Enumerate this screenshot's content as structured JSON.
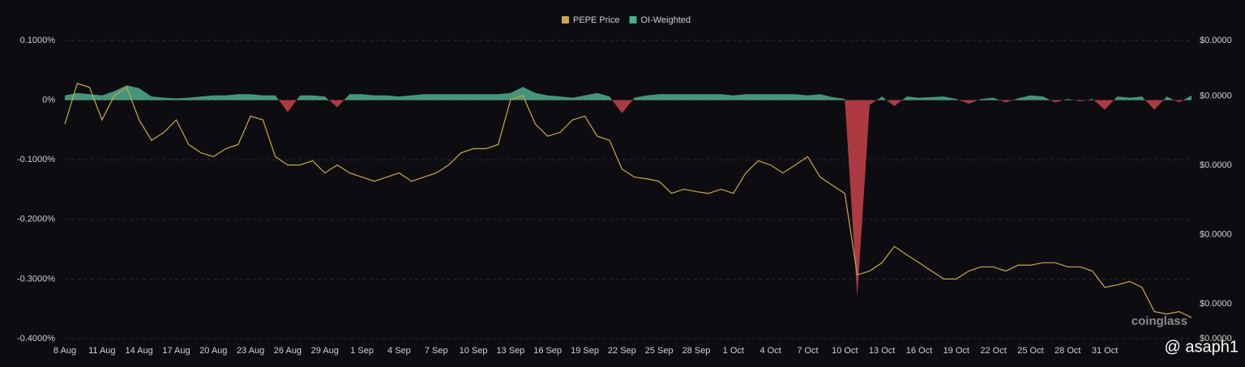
{
  "chart_data": {
    "type": "line",
    "categories": [
      "8 Aug",
      null,
      null,
      "11 Aug",
      null,
      null,
      "14 Aug",
      null,
      null,
      "17 Aug",
      null,
      null,
      "20 Aug",
      null,
      null,
      "23 Aug",
      null,
      null,
      "26 Aug",
      null,
      null,
      "29 Aug",
      null,
      null,
      "1 Sep",
      null,
      null,
      "4 Sep",
      null,
      null,
      "7 Sep",
      null,
      null,
      "10 Sep",
      null,
      null,
      "13 Sep",
      null,
      null,
      "16 Sep",
      null,
      null,
      "19 Sep",
      null,
      null,
      "22 Sep",
      null,
      null,
      "25 Sep",
      null,
      null,
      "28 Sep",
      null,
      null,
      "1 Oct",
      null,
      null,
      "4 Oct",
      null,
      null,
      "7 Oct",
      null,
      null,
      "10 Oct",
      null,
      null,
      "13 Oct",
      null,
      null,
      "16 Oct",
      null,
      null,
      "19 Oct",
      null,
      null,
      "22 Oct",
      null,
      null,
      "25 Oct",
      null,
      null,
      "28 Oct",
      null,
      null,
      "31 Oct",
      null,
      null,
      null,
      null,
      null,
      null,
      null
    ],
    "series": [
      {
        "name": "PEPE Price",
        "color": "#c9a84c",
        "axis": "y2",
        "values": [
          1.119e-05,
          1.236e-05,
          1.225e-05,
          1.131e-05,
          1.201e-05,
          1.225e-05,
          1.131e-05,
          1.072e-05,
          1.095e-05,
          1.131e-05,
          1.06e-05,
          1.036e-05,
          1.025e-05,
          1.048e-05,
          1.06e-05,
          1.142e-05,
          1.131e-05,
          1.025e-05,
          1.001e-05,
          1.001e-05,
          1.013e-05,
          9.78e-06,
          1.001e-05,
          9.78e-06,
          9.66e-06,
          9.54e-06,
          9.66e-06,
          9.78e-06,
          9.54e-06,
          9.66e-06,
          9.78e-06,
          1.001e-05,
          1.036e-05,
          1.048e-05,
          1.048e-05,
          1.06e-05,
          1.189e-05,
          1.201e-05,
          1.119e-05,
          1.084e-05,
          1.095e-05,
          1.131e-05,
          1.142e-05,
          1.084e-05,
          1.072e-05,
          9.89e-06,
          9.66e-06,
          9.61e-06,
          9.54e-06,
          9.19e-06,
          9.31e-06,
          9.24e-06,
          9.19e-06,
          9.31e-06,
          9.19e-06,
          9.78e-06,
          1.013e-05,
          1.001e-05,
          9.78e-06,
          1.001e-05,
          1.025e-05,
          9.66e-06,
          9.42e-06,
          9.19e-06,
          6.84e-06,
          6.95e-06,
          7.19e-06,
          7.66e-06,
          7.42e-06,
          7.19e-06,
          6.95e-06,
          6.72e-06,
          6.72e-06,
          6.95e-06,
          7.07e-06,
          7.07e-06,
          6.95e-06,
          7.12e-06,
          7.12e-06,
          7.19e-06,
          7.19e-06,
          7.07e-06,
          7.07e-06,
          6.95e-06,
          6.48e-06,
          6.55e-06,
          6.65e-06,
          6.48e-06,
          5.78e-06,
          5.71e-06,
          5.78e-06,
          5.61e-06
        ]
      },
      {
        "name": "OI-Weighted",
        "type": "area",
        "color": "#4fae8b",
        "negative_color": "#c9424a",
        "values": [
          0.008,
          0.012,
          0.01,
          0.008,
          0.015,
          0.025,
          0.02,
          0.006,
          0.004,
          0.003,
          0.004,
          0.006,
          0.008,
          0.008,
          0.01,
          0.01,
          0.008,
          0.008,
          -0.02,
          0.008,
          0.008,
          0.006,
          -0.012,
          0.01,
          0.01,
          0.008,
          0.008,
          0.006,
          0.008,
          0.01,
          0.01,
          0.01,
          0.01,
          0.01,
          0.01,
          0.01,
          0.012,
          0.022,
          0.012,
          0.008,
          0.006,
          0.004,
          0.008,
          0.012,
          0.006,
          -0.022,
          0.004,
          0.008,
          0.01,
          0.01,
          0.01,
          0.01,
          0.01,
          0.01,
          0.008,
          0.01,
          0.01,
          0.01,
          0.01,
          0.01,
          0.008,
          0.01,
          0.005,
          0.002,
          -0.33,
          -0.008,
          0.006,
          -0.01,
          0.006,
          0.004,
          0.005,
          0.006,
          0.002,
          -0.006,
          0.002,
          0.004,
          -0.004,
          0.003,
          0.008,
          0.006,
          -0.004,
          0.002,
          -0.002,
          0.002,
          -0.016,
          0.006,
          0.004,
          0.006,
          -0.016,
          0.006,
          -0.004,
          0.008
        ]
      }
    ],
    "ylim": [
      -0.4,
      0.1
    ],
    "yticks": [
      {
        "value": 0.1,
        "label": "0.1000%"
      },
      {
        "value": 0,
        "label": "0%"
      },
      {
        "value": -0.1,
        "label": "-0.1000%"
      },
      {
        "value": -0.2,
        "label": "-0.2000%"
      },
      {
        "value": -0.3,
        "label": "-0.3000%"
      },
      {
        "value": -0.4,
        "label": "-0.4000%"
      }
    ],
    "y2lim": [
      5e-06,
      1.36e-05
    ],
    "y2ticks": [
      {
        "value": 1.36e-05,
        "label": "$0.0000"
      },
      {
        "value": 1.2e-05,
        "label": "$0.0000"
      },
      {
        "value": 1e-05,
        "label": "$0.0000"
      },
      {
        "value": 8e-06,
        "label": "$0.0000"
      },
      {
        "value": 6e-06,
        "label": "$0.0000"
      },
      {
        "value": 5e-06,
        "label": "$0.0000"
      }
    ],
    "grid": true,
    "legend": "top",
    "watermark": "coinglass",
    "credit": "@ asaph1"
  }
}
